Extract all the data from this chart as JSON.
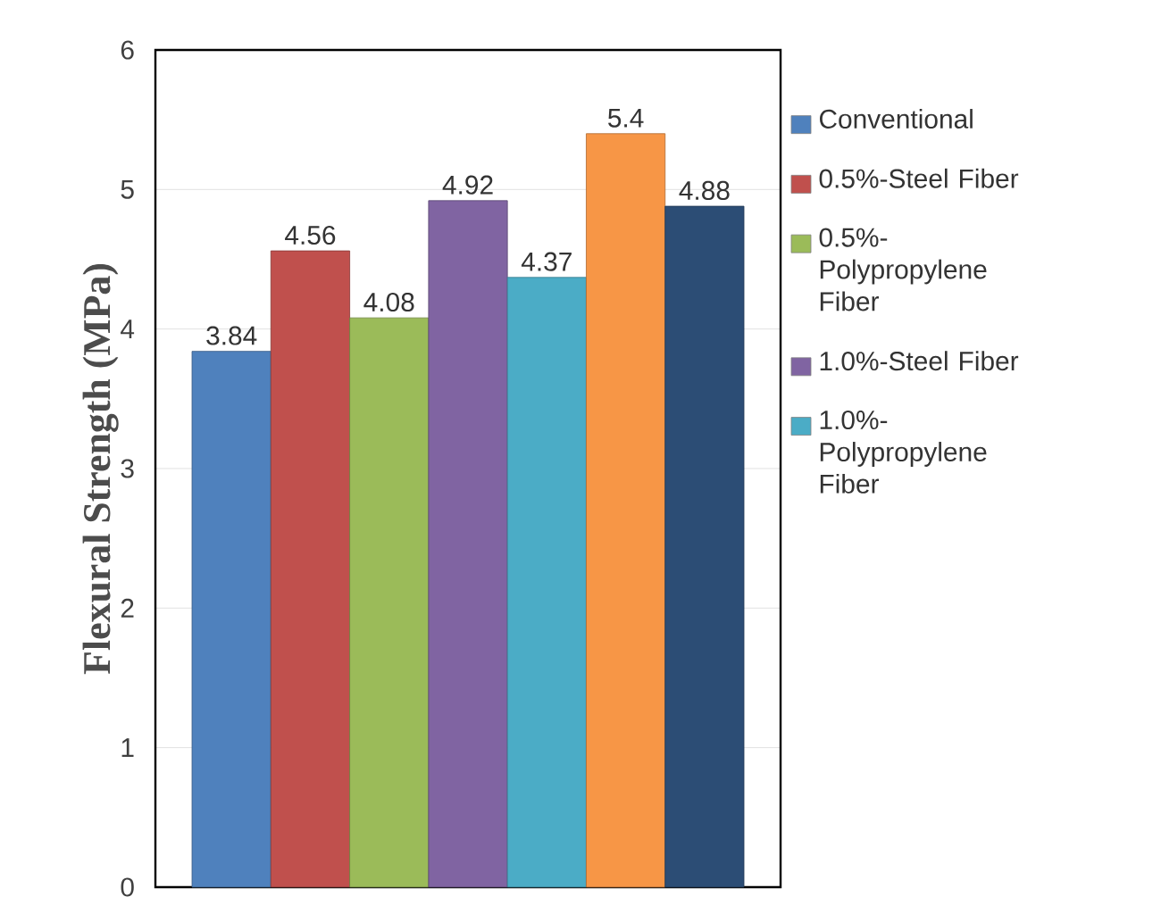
{
  "chart_data": {
    "type": "bar",
    "ylabel": "Flexural Strength (MPa)",
    "categories": [
      null
    ],
    "series": [
      {
        "name": "Conventional",
        "color": "#4f81bd",
        "values": [
          3.84
        ]
      },
      {
        "name": "0.5%-Steel Fiber",
        "color": "#c0504d",
        "values": [
          4.56
        ]
      },
      {
        "name": "0.5%-Polypropylene Fiber",
        "color": "#9bbb59",
        "values": [
          4.08
        ]
      },
      {
        "name": "1.0%-Steel Fiber",
        "color": "#8064a2",
        "values": [
          4.92
        ]
      },
      {
        "name": "1.0%-Polypropylene Fiber",
        "color": "#4bacc6",
        "values": [
          4.37
        ]
      },
      {
        "color": "#f79646",
        "values": [
          5.4
        ]
      },
      {
        "color": "#2c4d75",
        "values": [
          4.88
        ]
      }
    ],
    "ylim": [
      0,
      6
    ],
    "yticks": [
      0,
      1,
      2,
      3,
      4,
      5,
      6
    ],
    "grid": "y",
    "legend": "right",
    "data_labels": true
  }
}
